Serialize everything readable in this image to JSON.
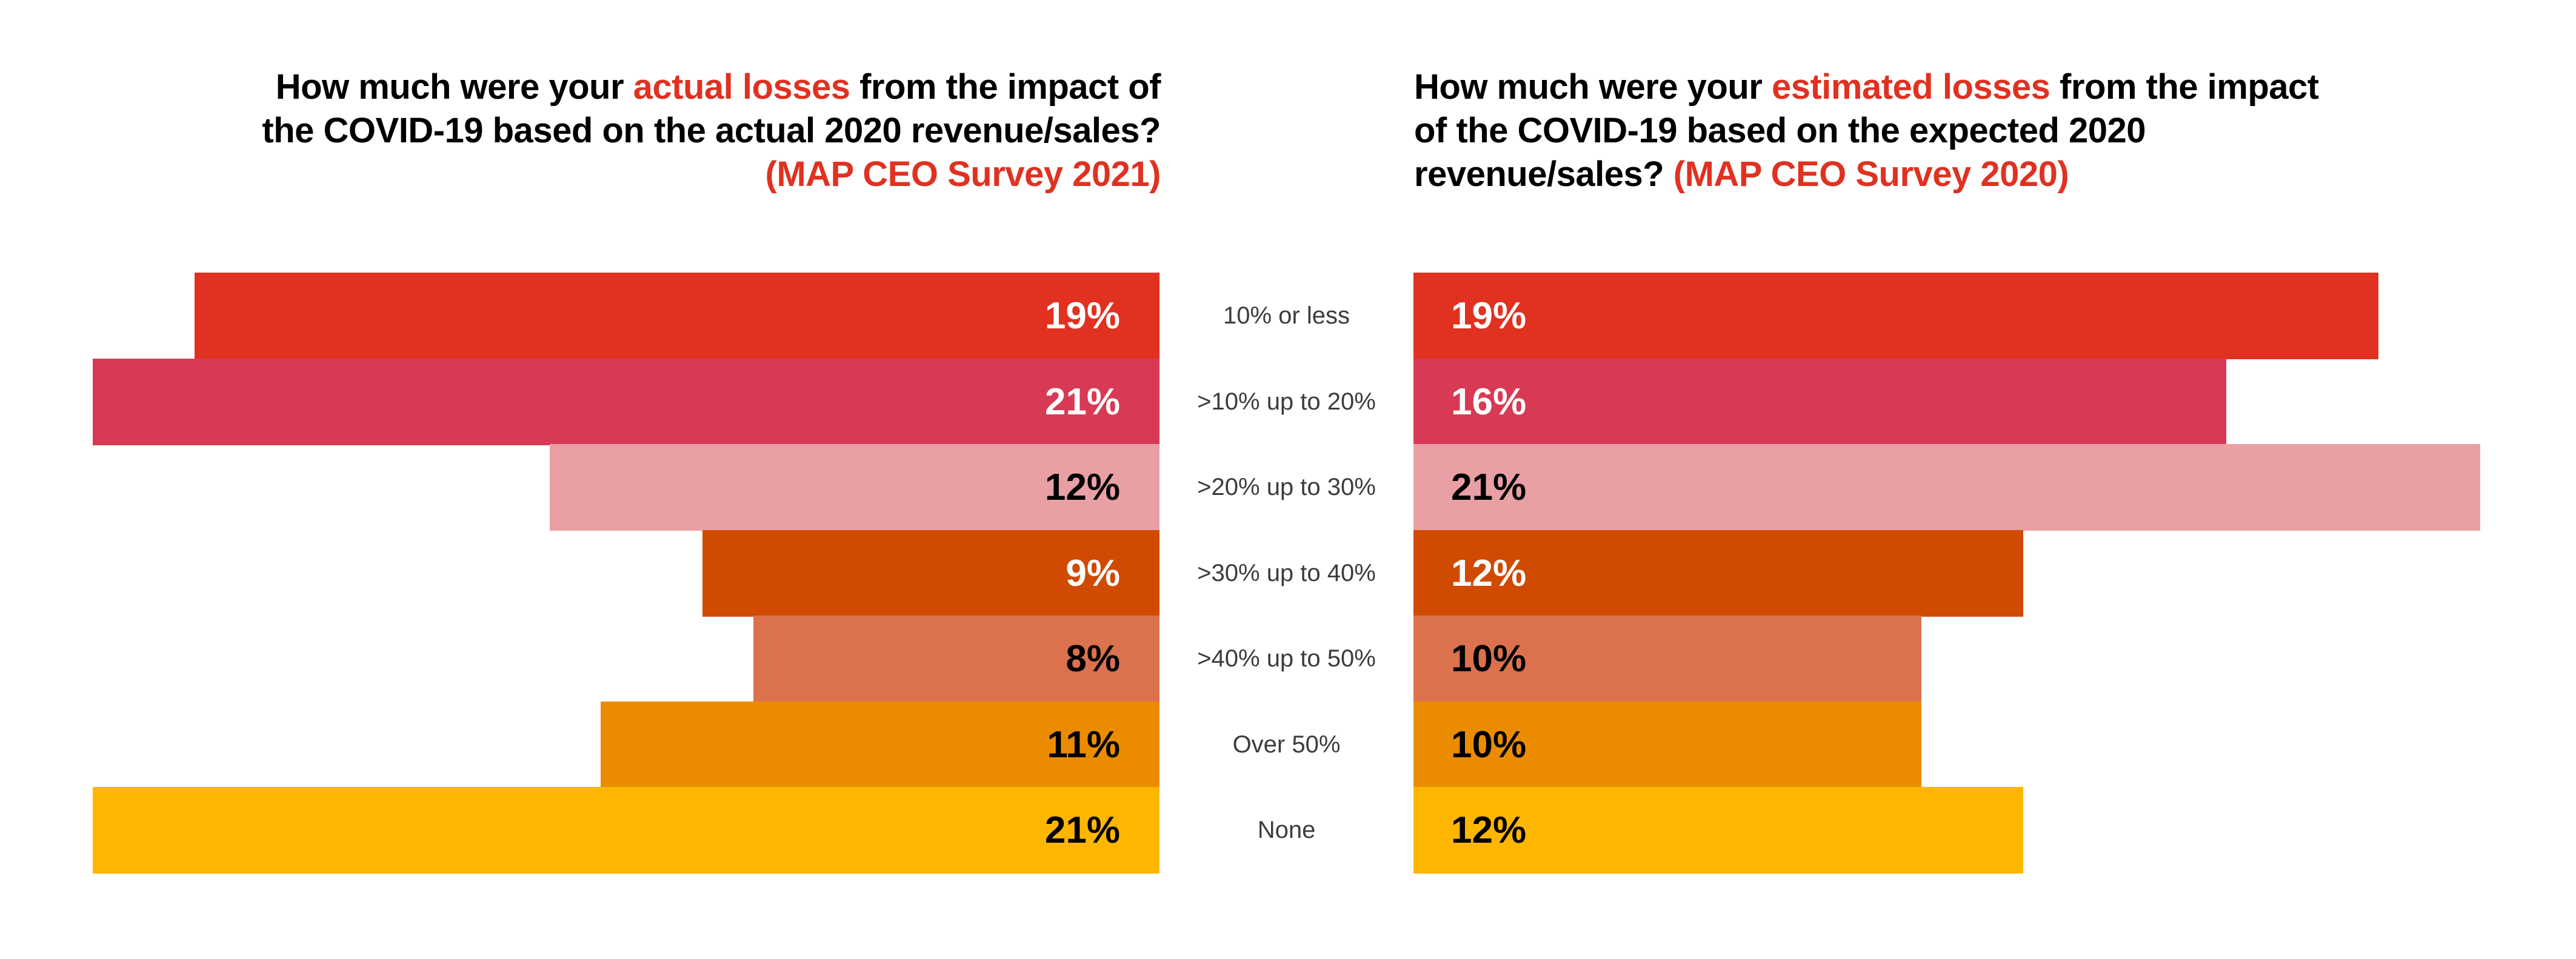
{
  "titles": {
    "left": {
      "pre": "How much were your ",
      "highlight": "actual losses",
      "mid": " from the impact of the COVID-19 based on the actual 2020 revenue/sales? ",
      "source": "(MAP CEO Survey 2021)"
    },
    "right": {
      "pre": "How much were your ",
      "highlight": "estimated losses",
      "mid": " from the impact of the COVID-19 based on the expected 2020 revenue/sales? ",
      "source": "(MAP CEO Survey 2020)"
    }
  },
  "colors": {
    "accent": "#e03121",
    "categories": [
      "#e03121",
      "#d83a56",
      "#e8a0a4",
      "#d04a02",
      "#db714d",
      "#eb8c00",
      "#ffb600"
    ],
    "label_colors": [
      "#ffffff",
      "#ffffff",
      "#000000",
      "#ffffff",
      "#000000",
      "#000000",
      "#000000"
    ]
  },
  "chart_data": {
    "type": "bar",
    "orientation": "horizontal-butterfly",
    "categories": [
      "10% or less",
      ">10% up to 20%",
      ">20% up to 30%",
      ">30% up to 40%",
      ">40% up to 50%",
      "Over 50%",
      "None"
    ],
    "series": [
      {
        "name": "Actual losses (MAP CEO Survey 2021)",
        "side": "left",
        "values": [
          19,
          21,
          12,
          9,
          8,
          11,
          21
        ],
        "labels": [
          "19%",
          "21%",
          "12%",
          "9%",
          "8%",
          "11%",
          "21%"
        ]
      },
      {
        "name": "Estimated losses (MAP CEO Survey 2020)",
        "side": "right",
        "values": [
          19,
          16,
          21,
          12,
          10,
          10,
          12
        ],
        "labels": [
          "19%",
          "16%",
          "21%",
          "12%",
          "10%",
          "10%",
          "12%"
        ]
      }
    ],
    "unit": "%",
    "xlim": [
      0,
      21
    ],
    "grid": false,
    "legend": "none"
  }
}
